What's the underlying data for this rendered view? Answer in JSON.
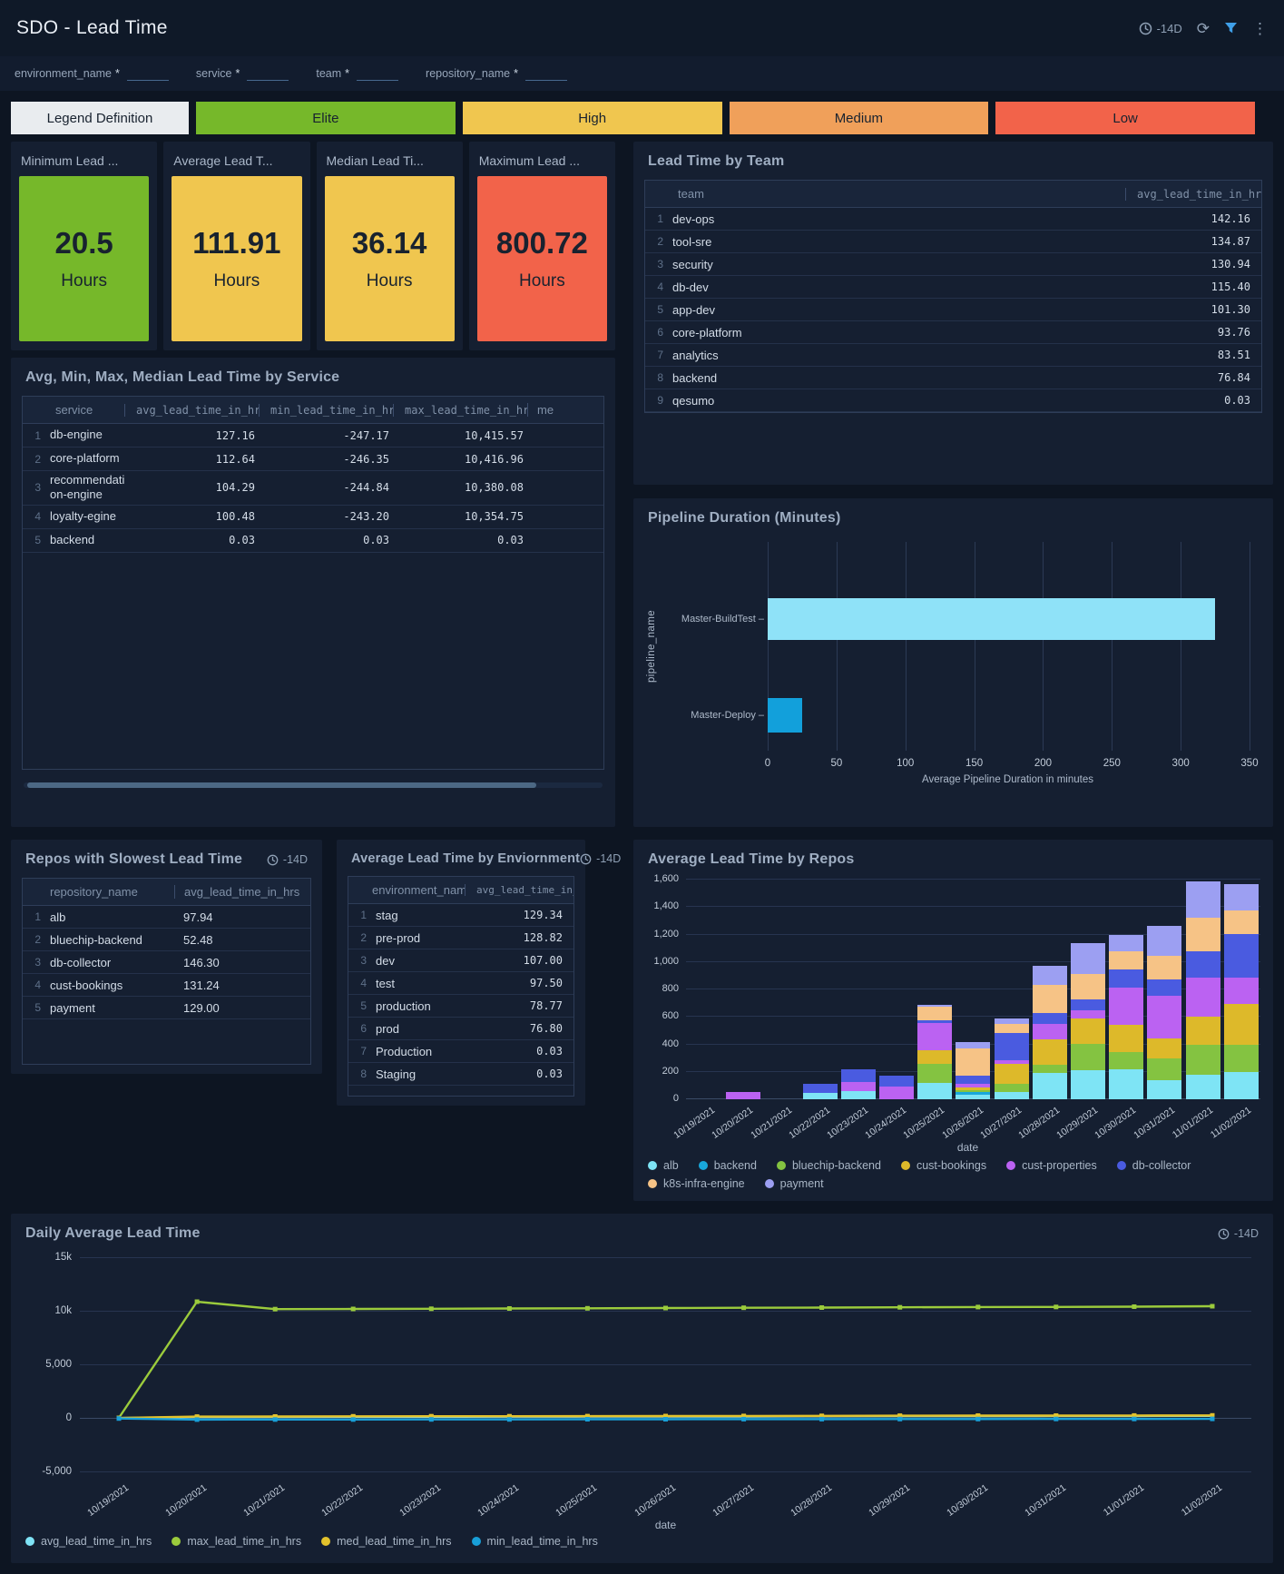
{
  "header": {
    "title": "SDO - Lead Time",
    "time_range": "-14D"
  },
  "filters": [
    {
      "label": "environment_name",
      "required": "*",
      "value": ""
    },
    {
      "label": "service",
      "required": "*",
      "value": ""
    },
    {
      "label": "team",
      "required": "*",
      "value": ""
    },
    {
      "label": "repository_name",
      "required": "*",
      "value": ""
    }
  ],
  "legend_chips": [
    {
      "label": "Legend Definition",
      "bg": "#E9ECEF"
    },
    {
      "label": "Elite",
      "bg": "#76B82A"
    },
    {
      "label": "High",
      "bg": "#F0C64F"
    },
    {
      "label": "Medium",
      "bg": "#F0A05A"
    },
    {
      "label": "Low",
      "bg": "#F2634A"
    }
  ],
  "stat_cards": [
    {
      "title": "Minimum Lead ...",
      "value": "20.5",
      "unit": "Hours",
      "color": "#76B82A"
    },
    {
      "title": "Average Lead T...",
      "value": "111.91",
      "unit": "Hours",
      "color": "#F0C64F"
    },
    {
      "title": "Median Lead Ti...",
      "value": "36.14",
      "unit": "Hours",
      "color": "#F0C64F"
    },
    {
      "title": "Maximum Lead ...",
      "value": "800.72",
      "unit": "Hours",
      "color": "#F2634A"
    }
  ],
  "team_panel": {
    "title": "Lead Time by Team",
    "columns": [
      "team",
      "avg_lead_time_in_hrs"
    ],
    "rows": [
      {
        "name": "dev-ops",
        "value": "142.16"
      },
      {
        "name": "tool-sre",
        "value": "134.87"
      },
      {
        "name": "security",
        "value": "130.94"
      },
      {
        "name": "db-dev",
        "value": "115.40"
      },
      {
        "name": "app-dev",
        "value": "101.30"
      },
      {
        "name": "core-platform",
        "value": "93.76"
      },
      {
        "name": "analytics",
        "value": "83.51"
      },
      {
        "name": "backend",
        "value": "76.84"
      },
      {
        "name": "qesumo",
        "value": "0.03"
      }
    ]
  },
  "service_panel": {
    "title": "Avg, Min, Max, Median Lead Time by Service",
    "columns": [
      "service",
      "avg_lead_time_in_hrs",
      "min_lead_time_in_hrs",
      "max_lead_time_in_hrs",
      "me"
    ],
    "rows": [
      {
        "name": "db-engine",
        "avg": "127.16",
        "min": "-247.17",
        "max": "10,415.57"
      },
      {
        "name": "core-platform",
        "avg": "112.64",
        "min": "-246.35",
        "max": "10,416.96"
      },
      {
        "name": "recommendation-engine",
        "avg": "104.29",
        "min": "-244.84",
        "max": "10,380.08"
      },
      {
        "name": "loyalty-egine",
        "avg": "100.48",
        "min": "-243.20",
        "max": "10,354.75"
      },
      {
        "name": "backend",
        "avg": "0.03",
        "min": "0.03",
        "max": "0.03"
      }
    ]
  },
  "pipeline_panel": {
    "title": "Pipeline Duration (Minutes)"
  },
  "repos_slowest_panel": {
    "title": "Repos with Slowest Lead Time",
    "time_range": "-14D",
    "columns": [
      "repository_name",
      "avg_lead_time_in_hrs"
    ],
    "rows": [
      {
        "name": "alb",
        "value": "97.94"
      },
      {
        "name": "bluechip-backend",
        "value": "52.48"
      },
      {
        "name": "db-collector",
        "value": "146.30"
      },
      {
        "name": "cust-bookings",
        "value": "131.24"
      },
      {
        "name": "payment",
        "value": "129.00"
      }
    ]
  },
  "environment_panel": {
    "title": "Average Lead Time by Enviornment",
    "time_range": "-14D",
    "columns": [
      "environment_name",
      "avg_lead_time_in_hrs"
    ],
    "rows": [
      {
        "name": "stag",
        "value": "129.34"
      },
      {
        "name": "pre-prod",
        "value": "128.82"
      },
      {
        "name": "dev",
        "value": "107.00"
      },
      {
        "name": "test",
        "value": "97.50"
      },
      {
        "name": "production",
        "value": "78.77"
      },
      {
        "name": "prod",
        "value": "76.80"
      },
      {
        "name": "Production",
        "value": "0.03"
      },
      {
        "name": "Staging",
        "value": "0.03"
      }
    ]
  },
  "repos_chart_panel": {
    "title": "Average Lead Time by Repos"
  },
  "daily_panel": {
    "title": "Daily Average Lead Time",
    "time_range": "-14D"
  },
  "chart_data": [
    {
      "type": "bar",
      "orientation": "horizontal",
      "title": "Pipeline Duration (Minutes)",
      "categories": [
        "Master-BuildTest",
        "Master-Deploy"
      ],
      "values": [
        325,
        25
      ],
      "colors": [
        "#8FE2F8",
        "#12A0DB"
      ],
      "xlim": [
        0,
        350
      ],
      "xticks": [
        0,
        50,
        100,
        150,
        200,
        250,
        300,
        350
      ],
      "xlabel": "Average Pipeline Duration in minutes",
      "ylabel": "pipeline_name",
      "grid": true
    },
    {
      "type": "bar",
      "stacked": true,
      "title": "Average Lead Time by Repos",
      "categories": [
        "10/19/2021",
        "10/20/2021",
        "10/21/2021",
        "10/22/2021",
        "10/23/2021",
        "10/24/2021",
        "10/25/2021",
        "10/26/2021",
        "10/27/2021",
        "10/28/2021",
        "10/29/2021",
        "10/30/2021",
        "10/31/2021",
        "11/01/2021",
        "11/02/2021"
      ],
      "series": [
        {
          "name": "alb",
          "color": "#7EE4F5",
          "values": [
            0,
            0,
            0,
            45,
            60,
            0,
            120,
            35,
            55,
            190,
            210,
            215,
            140,
            180,
            200
          ]
        },
        {
          "name": "backend",
          "color": "#18A8DC",
          "values": [
            0,
            0,
            0,
            0,
            0,
            0,
            0,
            15,
            0,
            0,
            0,
            0,
            0,
            0,
            0
          ]
        },
        {
          "name": "bluechip-backend",
          "color": "#84C341",
          "values": [
            0,
            0,
            0,
            0,
            0,
            0,
            135,
            15,
            55,
            60,
            195,
            130,
            155,
            220,
            195
          ]
        },
        {
          "name": "cust-bookings",
          "color": "#DDB92A",
          "values": [
            0,
            0,
            0,
            0,
            0,
            0,
            100,
            20,
            150,
            185,
            185,
            200,
            150,
            200,
            300
          ]
        },
        {
          "name": "cust-properties",
          "color": "#BB62F2",
          "values": [
            0,
            50,
            0,
            0,
            65,
            90,
            200,
            30,
            25,
            115,
            60,
            270,
            310,
            285,
            190
          ]
        },
        {
          "name": "db-collector",
          "color": "#4A5BE0",
          "values": [
            0,
            0,
            0,
            70,
            95,
            85,
            20,
            55,
            195,
            80,
            80,
            130,
            120,
            190,
            320
          ]
        },
        {
          "name": "k8s-infra-engine",
          "color": "#F6C386",
          "values": [
            0,
            0,
            0,
            0,
            0,
            0,
            100,
            200,
            70,
            205,
            180,
            130,
            170,
            250,
            170
          ]
        },
        {
          "name": "payment",
          "color": "#9C9FF2",
          "values": [
            0,
            0,
            0,
            0,
            0,
            0,
            15,
            45,
            40,
            135,
            230,
            125,
            220,
            265,
            190
          ]
        }
      ],
      "ylim": [
        0,
        1600
      ],
      "yticks": [
        0,
        200,
        400,
        600,
        800,
        1000,
        1200,
        1400,
        1600
      ],
      "ytick_labels": [
        "0",
        "200",
        "400",
        "600",
        "800",
        "1,000",
        "1,200",
        "1,400",
        "1,600"
      ],
      "xlabel": "date",
      "legend_position": "bottom",
      "grid": true
    },
    {
      "type": "line",
      "title": "Daily Average Lead Time",
      "x": [
        "10/19/2021",
        "10/20/2021",
        "10/21/2021",
        "10/22/2021",
        "10/23/2021",
        "10/24/2021",
        "10/25/2021",
        "10/26/2021",
        "10/27/2021",
        "10/28/2021",
        "10/29/2021",
        "10/30/2021",
        "10/31/2021",
        "11/01/2021",
        "11/02/2021"
      ],
      "series": [
        {
          "name": "avg_lead_time_in_hrs",
          "color": "#7FE3F6",
          "values": [
            -20,
            80,
            90,
            100,
            105,
            110,
            115,
            120,
            130,
            140,
            150,
            155,
            160,
            170,
            185
          ]
        },
        {
          "name": "max_lead_time_in_hrs",
          "color": "#9BCB3C",
          "values": [
            0,
            10850,
            10150,
            10170,
            10190,
            10210,
            10230,
            10250,
            10280,
            10300,
            10320,
            10350,
            10360,
            10380,
            10420
          ]
        },
        {
          "name": "med_lead_time_in_hrs",
          "color": "#E3C22C",
          "values": [
            -10,
            120,
            130,
            140,
            150,
            155,
            160,
            170,
            180,
            190,
            200,
            210,
            215,
            220,
            230
          ]
        },
        {
          "name": "min_lead_time_in_hrs",
          "color": "#189FD8",
          "values": [
            -60,
            -160,
            -150,
            -150,
            -140,
            -140,
            -130,
            -130,
            -120,
            -120,
            -110,
            -110,
            -100,
            -100,
            -90
          ]
        }
      ],
      "ylim": [
        -5000,
        15000
      ],
      "yticks": [
        15000,
        10000,
        5000,
        0,
        -5000
      ],
      "ytick_labels": [
        "15k",
        "10k",
        "5,000",
        "0",
        "-5,000"
      ],
      "xlabel": "date",
      "legend_position": "bottom",
      "grid": true
    }
  ]
}
